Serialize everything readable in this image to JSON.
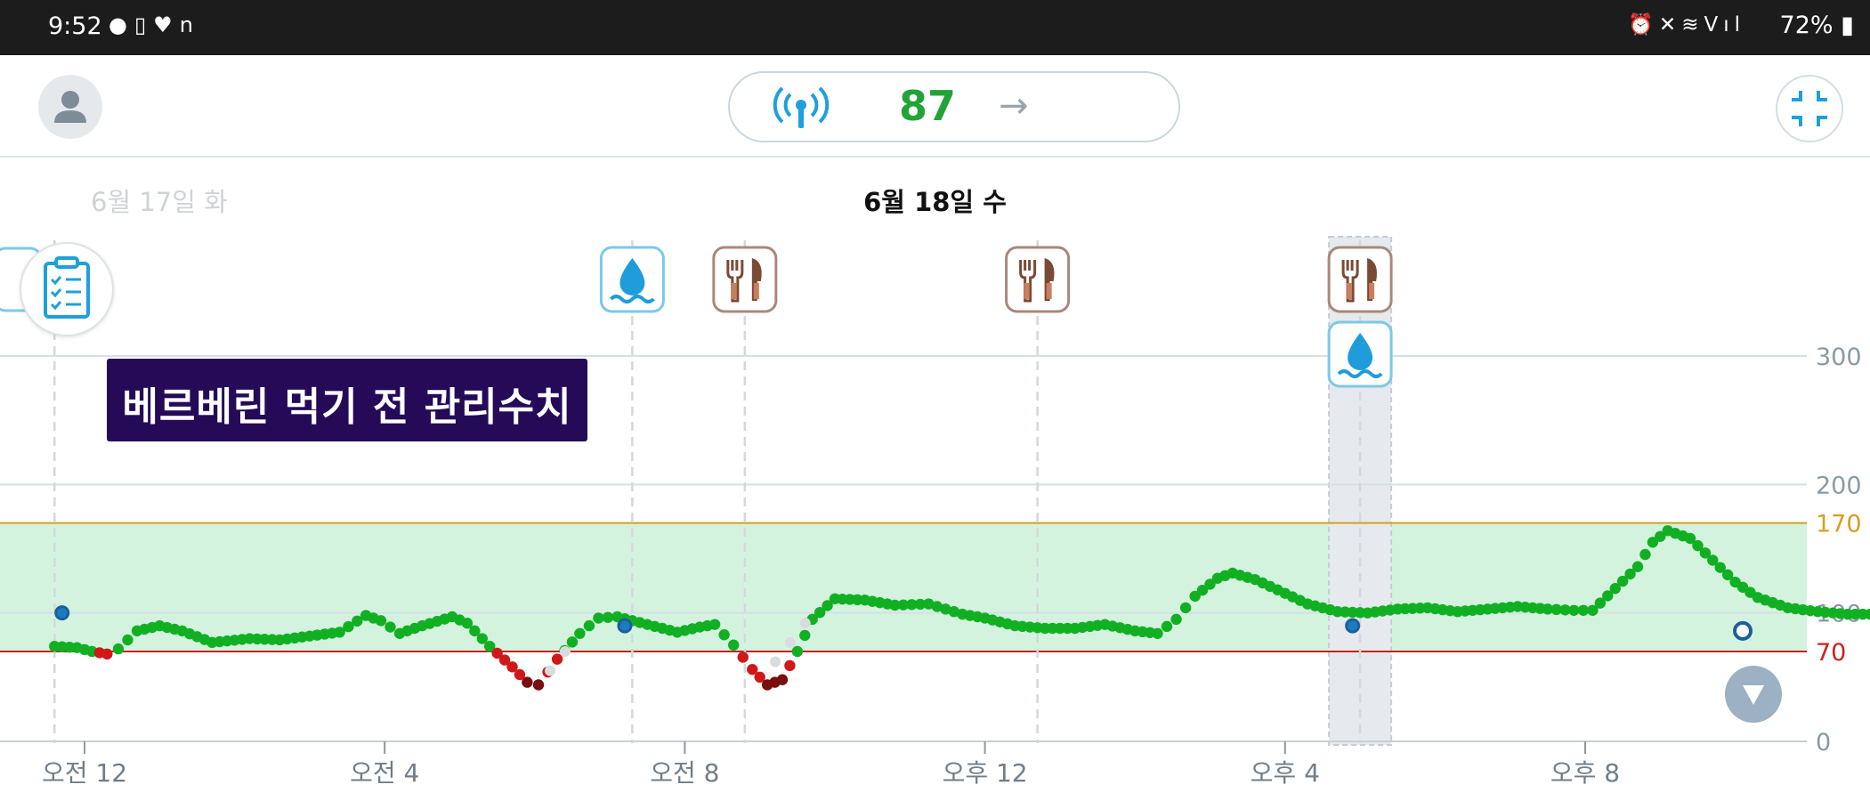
{
  "status_bar": {
    "time": "9:52",
    "left_icons": [
      "talk-icon",
      "watch-icon",
      "heart-icon",
      "app-icon"
    ],
    "right_icons": [
      "alarm-icon",
      "mute-icon",
      "wifi-icon",
      "volte-icon",
      "signal-icon"
    ],
    "battery": "72%"
  },
  "header": {
    "current_reading": "87",
    "trend": "→",
    "reading_color": "#22a338",
    "accent_color": "#1ea0dd"
  },
  "dates": {
    "previous": "6월 17일 화",
    "current": "6월 18일 수"
  },
  "overlay": {
    "text": "베르베린 먹기 전 관리수치"
  },
  "chart_data": {
    "type": "line",
    "title": "",
    "x_ticks": [
      "오전 12",
      "오전 4",
      "오전 8",
      "오후 12",
      "오후 4",
      "오후 8"
    ],
    "y_ticks": [
      "0",
      "70",
      "100",
      "170",
      "200",
      "300"
    ],
    "ylim": [
      0,
      300
    ],
    "target_range": {
      "low": 70,
      "high": 170,
      "low_color": "#cc2020",
      "high_color": "#d4a020",
      "band_color": "#d4f3df"
    },
    "series": [
      {
        "values_hours": [
          [
            -0.4,
            74
          ],
          [
            -0.1,
            73
          ],
          [
            0.1,
            70
          ],
          [
            0.3,
            68
          ],
          [
            0.45,
            72
          ],
          [
            0.7,
            86
          ],
          [
            1.0,
            90
          ],
          [
            1.3,
            86
          ],
          [
            1.7,
            77
          ],
          [
            2.2,
            80
          ],
          [
            2.6,
            79
          ],
          [
            3.0,
            82
          ],
          [
            3.4,
            85
          ],
          [
            3.75,
            98
          ],
          [
            3.95,
            94
          ],
          [
            4.2,
            84
          ],
          [
            4.5,
            90
          ],
          [
            4.9,
            97
          ],
          [
            5.1,
            92
          ],
          [
            5.4,
            74
          ],
          [
            5.7,
            58
          ],
          [
            5.9,
            46
          ],
          [
            6.05,
            44
          ],
          [
            6.3,
            64
          ],
          [
            6.6,
            84
          ],
          [
            6.85,
            96
          ],
          [
            7.1,
            97
          ],
          [
            7.5,
            91
          ],
          [
            7.9,
            85
          ],
          [
            8.2,
            89
          ],
          [
            8.4,
            91
          ],
          [
            8.65,
            75
          ],
          [
            8.9,
            56
          ],
          [
            9.1,
            44
          ],
          [
            9.3,
            48
          ],
          [
            9.5,
            70
          ],
          [
            9.7,
            95
          ],
          [
            10.0,
            111
          ],
          [
            10.4,
            110
          ],
          [
            10.8,
            106
          ],
          [
            11.25,
            107
          ],
          [
            11.7,
            99
          ],
          [
            12.0,
            96
          ],
          [
            12.4,
            90
          ],
          [
            12.8,
            88
          ],
          [
            13.2,
            88
          ],
          [
            13.6,
            91
          ],
          [
            14.0,
            86
          ],
          [
            14.3,
            84
          ],
          [
            14.55,
            95
          ],
          [
            14.8,
            113
          ],
          [
            15.1,
            127
          ],
          [
            15.3,
            131
          ],
          [
            15.6,
            126
          ],
          [
            15.9,
            118
          ],
          [
            16.3,
            107
          ],
          [
            16.7,
            101
          ],
          [
            17.1,
            100
          ],
          [
            17.5,
            103
          ],
          [
            17.9,
            104
          ],
          [
            18.3,
            101
          ],
          [
            18.7,
            103
          ],
          [
            19.1,
            105
          ],
          [
            19.5,
            103
          ],
          [
            19.85,
            102
          ],
          [
            20.1,
            102
          ],
          [
            20.4,
            119
          ],
          [
            20.7,
            136
          ],
          [
            20.9,
            155
          ],
          [
            21.1,
            164
          ],
          [
            21.4,
            158
          ],
          [
            21.7,
            141
          ],
          [
            22.0,
            124
          ],
          [
            22.3,
            112
          ],
          [
            22.7,
            104
          ],
          [
            23.1,
            101
          ],
          [
            23.5,
            99
          ],
          [
            23.9,
            99
          ],
          [
            24.3,
            102
          ],
          [
            24.7,
            101
          ],
          [
            25.1,
            100
          ],
          [
            25.5,
            101
          ],
          [
            25.9,
            99
          ],
          [
            26.3,
            96
          ],
          [
            26.7,
            98
          ],
          [
            27.1,
            103
          ],
          [
            27.5,
            106
          ],
          [
            27.9,
            104
          ],
          [
            28.3,
            113
          ],
          [
            28.6,
            112
          ],
          [
            28.9,
            106
          ],
          [
            29.2,
            102
          ],
          [
            29.5,
            111
          ],
          [
            29.9,
            111
          ],
          [
            30.3,
            115
          ],
          [
            30.6,
            111
          ],
          [
            30.9,
            96
          ],
          [
            31.2,
            95
          ],
          [
            31.4,
            99
          ],
          [
            31.7,
            95
          ],
          [
            32.0,
            90
          ],
          [
            32.3,
            90
          ],
          [
            32.6,
            91
          ],
          [
            32.9,
            90
          ],
          [
            33.2,
            86
          ],
          [
            33.5,
            84
          ],
          [
            33.7,
            86
          ]
        ],
        "unit": "mg/dL"
      }
    ],
    "event_markers_hours": [
      -0.4,
      7.3,
      8.8,
      12.7,
      17.0
    ],
    "calibration_points": [
      [
        -0.3,
        100
      ],
      [
        7.2,
        90
      ],
      [
        16.9,
        90
      ],
      [
        22.1,
        86
      ]
    ],
    "events": [
      {
        "type": "water-drop-icon",
        "hour": 7.3
      },
      {
        "type": "meal-icon",
        "hour": 8.8
      },
      {
        "type": "meal-icon",
        "hour": 12.7
      },
      {
        "type": "meal-icon",
        "hour": 17.0
      },
      {
        "type": "water-drop-icon",
        "hour": 17.0
      }
    ],
    "grid": true,
    "selected_hour": 17.0
  }
}
